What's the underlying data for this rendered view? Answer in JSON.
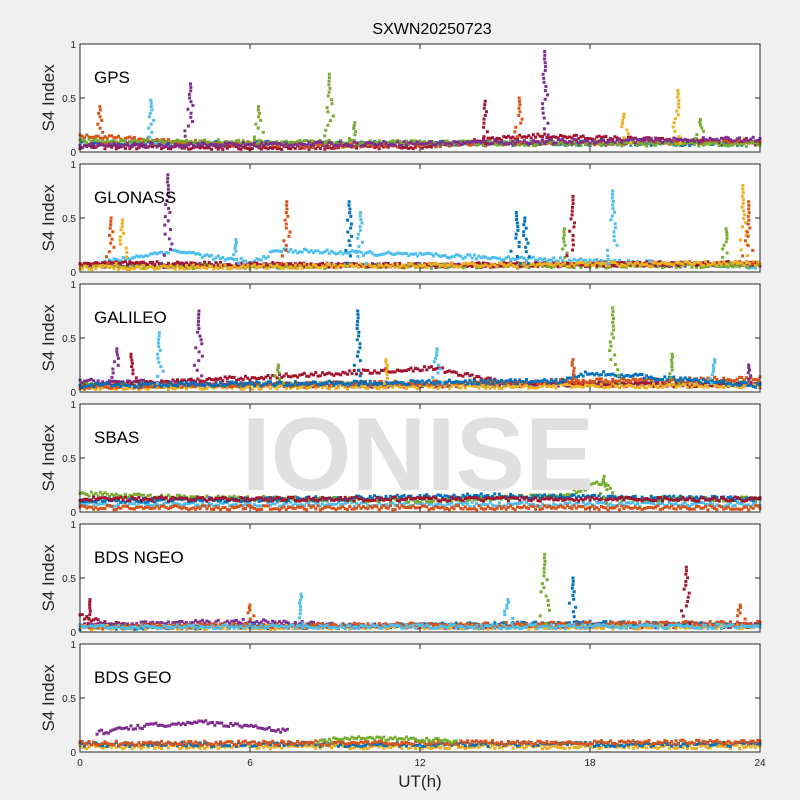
{
  "title": "SXWN20250723",
  "watermark": "IONISE",
  "colors": {
    "blue": "#0072BD",
    "orange": "#D95319",
    "yellow": "#EDB120",
    "purple": "#7E2F8E",
    "green": "#77AC30",
    "cyan": "#4DBEEE",
    "red": "#A2142F"
  },
  "chart_data": [
    {
      "type": "scatter",
      "panel_label": "GPS",
      "ylabel": "S4 Index",
      "xlim": [
        0,
        24
      ],
      "ylim": [
        0,
        1
      ],
      "yticks": [
        "0",
        "0.5",
        "1"
      ],
      "xticks": [
        0,
        6,
        12,
        18,
        24
      ],
      "baseline": [
        {
          "color": "blue",
          "hours": [
            0,
            24
          ],
          "level": [
            0.08,
            0.08
          ]
        },
        {
          "color": "red",
          "hours": [
            0,
            6,
            12,
            16,
            24
          ],
          "level": [
            0.05,
            0.04,
            0.05,
            0.15,
            0.08
          ]
        },
        {
          "color": "orange",
          "hours": [
            0,
            3,
            8,
            24
          ],
          "level": [
            0.15,
            0.1,
            0.06,
            0.1
          ]
        },
        {
          "color": "green",
          "hours": [
            0,
            24
          ],
          "level": [
            0.1,
            0.07
          ]
        },
        {
          "color": "purple",
          "hours": [
            0,
            12,
            24
          ],
          "level": [
            0.06,
            0.08,
            0.12
          ]
        }
      ],
      "spikes": [
        {
          "x": 0.7,
          "y": 0.42,
          "color": "orange"
        },
        {
          "x": 2.5,
          "y": 0.48,
          "color": "cyan"
        },
        {
          "x": 3.9,
          "y": 0.63,
          "color": "purple"
        },
        {
          "x": 6.3,
          "y": 0.42,
          "color": "green"
        },
        {
          "x": 8.8,
          "y": 0.72,
          "color": "green"
        },
        {
          "x": 9.7,
          "y": 0.27,
          "color": "green"
        },
        {
          "x": 14.3,
          "y": 0.47,
          "color": "red"
        },
        {
          "x": 15.5,
          "y": 0.5,
          "color": "orange"
        },
        {
          "x": 16.4,
          "y": 0.93,
          "color": "purple"
        },
        {
          "x": 19.2,
          "y": 0.35,
          "color": "yellow"
        },
        {
          "x": 21.1,
          "y": 0.57,
          "color": "yellow"
        },
        {
          "x": 21.9,
          "y": 0.3,
          "color": "green"
        }
      ]
    },
    {
      "type": "scatter",
      "panel_label": "GLONASS",
      "ylabel": "S4 Index",
      "xlim": [
        0,
        24
      ],
      "ylim": [
        0,
        1
      ],
      "yticks": [
        "0",
        "0.5",
        "1"
      ],
      "xticks": [
        0,
        6,
        12,
        18,
        24
      ],
      "baseline": [
        {
          "color": "cyan",
          "hours": [
            0,
            3.3,
            6,
            7,
            24
          ],
          "level": [
            0.05,
            0.2,
            0.08,
            0.2,
            0.05
          ]
        },
        {
          "color": "purple",
          "hours": [
            0,
            24
          ],
          "level": [
            0.06,
            0.07
          ]
        },
        {
          "color": "green",
          "hours": [
            0,
            24
          ],
          "level": [
            0.05,
            0.06
          ]
        },
        {
          "color": "red",
          "hours": [
            0,
            12,
            24
          ],
          "level": [
            0.08,
            0.06,
            0.08
          ]
        },
        {
          "color": "yellow",
          "hours": [
            0,
            24
          ],
          "level": [
            0.04,
            0.08
          ]
        }
      ],
      "spikes": [
        {
          "x": 1.1,
          "y": 0.5,
          "color": "orange"
        },
        {
          "x": 1.5,
          "y": 0.48,
          "color": "yellow"
        },
        {
          "x": 3.1,
          "y": 0.9,
          "color": "purple"
        },
        {
          "x": 5.5,
          "y": 0.3,
          "color": "cyan"
        },
        {
          "x": 7.3,
          "y": 0.65,
          "color": "orange"
        },
        {
          "x": 9.5,
          "y": 0.65,
          "color": "blue"
        },
        {
          "x": 9.9,
          "y": 0.55,
          "color": "cyan"
        },
        {
          "x": 15.4,
          "y": 0.55,
          "color": "blue"
        },
        {
          "x": 15.7,
          "y": 0.5,
          "color": "blue"
        },
        {
          "x": 17.1,
          "y": 0.4,
          "color": "green"
        },
        {
          "x": 17.4,
          "y": 0.7,
          "color": "red"
        },
        {
          "x": 18.8,
          "y": 0.75,
          "color": "cyan"
        },
        {
          "x": 22.8,
          "y": 0.4,
          "color": "green"
        },
        {
          "x": 23.4,
          "y": 0.8,
          "color": "yellow"
        },
        {
          "x": 23.6,
          "y": 0.65,
          "color": "orange"
        }
      ]
    },
    {
      "type": "scatter",
      "panel_label": "GALILEO",
      "ylabel": "S4 Index",
      "xlim": [
        0,
        24
      ],
      "ylim": [
        0,
        1
      ],
      "yticks": [
        "0",
        "0.5",
        "1"
      ],
      "xticks": [
        0,
        6,
        12,
        18,
        24
      ],
      "baseline": [
        {
          "color": "green",
          "hours": [
            0,
            24
          ],
          "level": [
            0.06,
            0.08
          ]
        },
        {
          "color": "purple",
          "hours": [
            0,
            4,
            8,
            24
          ],
          "level": [
            0.1,
            0.08,
            0.06,
            0.08
          ]
        },
        {
          "color": "red",
          "hours": [
            0,
            12.5,
            15,
            24
          ],
          "level": [
            0.05,
            0.22,
            0.08,
            0.06
          ]
        },
        {
          "color": "yellow",
          "hours": [
            0,
            24
          ],
          "level": [
            0.04,
            0.06
          ]
        },
        {
          "color": "orange",
          "hours": [
            0,
            24
          ],
          "level": [
            0.05,
            0.12
          ]
        },
        {
          "color": "blue",
          "hours": [
            0,
            17,
            18,
            24
          ],
          "level": [
            0.06,
            0.1,
            0.18,
            0.06
          ]
        }
      ],
      "spikes": [
        {
          "x": 1.3,
          "y": 0.4,
          "color": "purple"
        },
        {
          "x": 1.8,
          "y": 0.35,
          "color": "red"
        },
        {
          "x": 2.8,
          "y": 0.55,
          "color": "cyan"
        },
        {
          "x": 4.2,
          "y": 0.75,
          "color": "purple"
        },
        {
          "x": 7.0,
          "y": 0.25,
          "color": "green"
        },
        {
          "x": 9.8,
          "y": 0.75,
          "color": "blue"
        },
        {
          "x": 10.8,
          "y": 0.3,
          "color": "yellow"
        },
        {
          "x": 12.6,
          "y": 0.4,
          "color": "cyan"
        },
        {
          "x": 17.4,
          "y": 0.3,
          "color": "orange"
        },
        {
          "x": 18.8,
          "y": 0.78,
          "color": "green"
        },
        {
          "x": 20.9,
          "y": 0.35,
          "color": "green"
        },
        {
          "x": 22.4,
          "y": 0.3,
          "color": "cyan"
        },
        {
          "x": 23.6,
          "y": 0.25,
          "color": "purple"
        }
      ]
    },
    {
      "type": "scatter",
      "panel_label": "SBAS",
      "ylabel": "S4 Index",
      "xlim": [
        0,
        24
      ],
      "ylim": [
        0,
        1
      ],
      "yticks": [
        "0",
        "0.5",
        "1"
      ],
      "xticks": [
        0,
        6,
        12,
        18,
        24
      ],
      "baseline": [
        {
          "color": "cyan",
          "hours": [
            0,
            24
          ],
          "level": [
            0.07,
            0.07
          ]
        },
        {
          "color": "orange",
          "hours": [
            0,
            24
          ],
          "level": [
            0.04,
            0.04
          ]
        },
        {
          "color": "green",
          "hours": [
            0,
            2,
            4,
            12,
            17,
            18.5,
            19,
            24
          ],
          "level": [
            0.17,
            0.15,
            0.13,
            0.11,
            0.15,
            0.28,
            0.12,
            0.12
          ]
        },
        {
          "color": "blue",
          "hours": [
            0,
            8,
            14,
            24
          ],
          "level": [
            0.1,
            0.12,
            0.15,
            0.12
          ]
        },
        {
          "color": "red",
          "hours": [
            0,
            24
          ],
          "level": [
            0.12,
            0.12
          ]
        }
      ],
      "spikes": [
        {
          "x": 18.5,
          "y": 0.33,
          "color": "green"
        }
      ]
    },
    {
      "type": "scatter",
      "panel_label": "BDS NGEO",
      "ylabel": "S4 Index",
      "xlim": [
        0,
        24
      ],
      "ylim": [
        0,
        1
      ],
      "yticks": [
        "0",
        "0.5",
        "1"
      ],
      "xticks": [
        0,
        6,
        12,
        18,
        24
      ],
      "baseline": [
        {
          "color": "red",
          "hours": [
            0,
            1,
            2,
            24
          ],
          "level": [
            0.15,
            0.08,
            0.05,
            0.06
          ]
        },
        {
          "color": "purple",
          "hours": [
            0,
            6,
            10,
            24
          ],
          "level": [
            0.06,
            0.1,
            0.05,
            0.06
          ]
        },
        {
          "color": "blue",
          "hours": [
            0,
            12,
            18,
            24
          ],
          "level": [
            0.04,
            0.06,
            0.08,
            0.06
          ]
        },
        {
          "color": "yellow",
          "hours": [
            0,
            24
          ],
          "level": [
            0.04,
            0.05
          ]
        },
        {
          "color": "orange",
          "hours": [
            0,
            24
          ],
          "level": [
            0.05,
            0.08
          ]
        },
        {
          "color": "cyan",
          "hours": [
            0,
            24
          ],
          "level": [
            0.05,
            0.05
          ]
        }
      ],
      "spikes": [
        {
          "x": 0.35,
          "y": 0.3,
          "color": "red"
        },
        {
          "x": 6.0,
          "y": 0.25,
          "color": "orange"
        },
        {
          "x": 7.8,
          "y": 0.35,
          "color": "cyan"
        },
        {
          "x": 15.1,
          "y": 0.3,
          "color": "cyan"
        },
        {
          "x": 16.4,
          "y": 0.72,
          "color": "green"
        },
        {
          "x": 17.4,
          "y": 0.5,
          "color": "blue"
        },
        {
          "x": 21.4,
          "y": 0.6,
          "color": "red"
        },
        {
          "x": 23.3,
          "y": 0.25,
          "color": "orange"
        }
      ]
    },
    {
      "type": "scatter",
      "panel_label": "BDS GEO",
      "ylabel": "S4 Index",
      "xlim": [
        0,
        24
      ],
      "ylim": [
        0,
        1
      ],
      "yticks": [
        "0",
        "0.5",
        "1"
      ],
      "xticks": [
        "0",
        "6",
        "12",
        "18",
        "24"
      ],
      "xlabel": "UT(h)",
      "baseline": [
        {
          "color": "yellow",
          "hours": [
            0,
            24
          ],
          "level": [
            0.05,
            0.05
          ]
        },
        {
          "color": "blue",
          "hours": [
            0,
            24
          ],
          "level": [
            0.07,
            0.07
          ]
        },
        {
          "color": "orange",
          "hours": [
            0,
            24
          ],
          "level": [
            0.08,
            0.09
          ]
        },
        {
          "color": "purple",
          "hours": [
            0.6,
            2,
            4,
            5.5,
            7.4
          ],
          "level": [
            0.18,
            0.23,
            0.28,
            0.25,
            0.19
          ]
        },
        {
          "color": "green",
          "hours": [
            8.4,
            10,
            12,
            13.3
          ],
          "level": [
            0.1,
            0.13,
            0.12,
            0.1
          ]
        }
      ],
      "spikes": []
    }
  ]
}
